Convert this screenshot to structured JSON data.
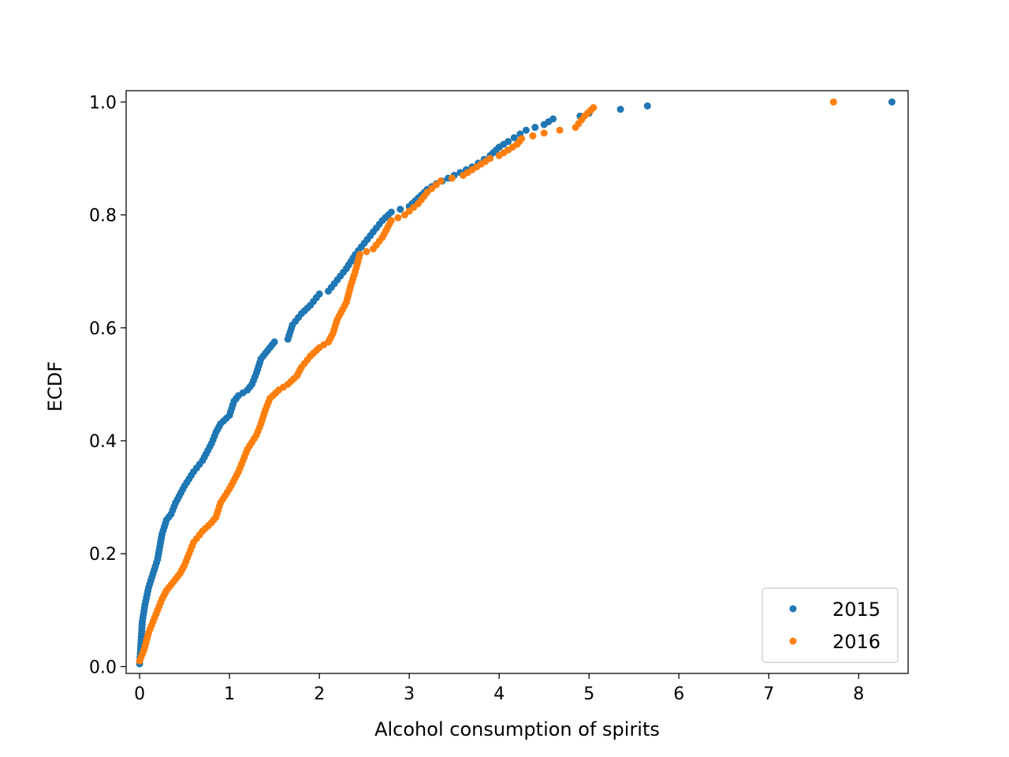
{
  "chart_data": {
    "type": "scatter",
    "title": "",
    "xlabel": "Alcohol consumption of spirits",
    "ylabel": "ECDF",
    "xlim": [
      -0.15,
      8.55
    ],
    "ylim": [
      -0.012,
      1.02
    ],
    "grid": false,
    "legend_placement": "bottom-right",
    "x_ticks": [
      0,
      1,
      2,
      3,
      4,
      5,
      6,
      7,
      8
    ],
    "x_tick_labels": [
      "0",
      "1",
      "2",
      "3",
      "4",
      "5",
      "6",
      "7",
      "8"
    ],
    "y_ticks": [
      0.0,
      0.2,
      0.4,
      0.6,
      0.8,
      1.0
    ],
    "y_tick_labels": [
      "0.0",
      "0.2",
      "0.4",
      "0.6",
      "0.8",
      "1.0"
    ],
    "series": [
      {
        "name": "2015",
        "color": "#1f77b4",
        "anchors": [
          [
            0.0,
            0.005
          ],
          [
            0.01,
            0.03
          ],
          [
            0.03,
            0.08
          ],
          [
            0.06,
            0.11
          ],
          [
            0.1,
            0.14
          ],
          [
            0.15,
            0.165
          ],
          [
            0.2,
            0.19
          ],
          [
            0.25,
            0.235
          ],
          [
            0.3,
            0.26
          ],
          [
            0.35,
            0.27
          ],
          [
            0.4,
            0.29
          ],
          [
            0.5,
            0.32
          ],
          [
            0.6,
            0.345
          ],
          [
            0.7,
            0.365
          ],
          [
            0.8,
            0.395
          ],
          [
            0.85,
            0.415
          ],
          [
            0.9,
            0.43
          ],
          [
            1.0,
            0.445
          ],
          [
            1.05,
            0.47
          ],
          [
            1.1,
            0.48
          ],
          [
            1.2,
            0.49
          ],
          [
            1.25,
            0.5
          ],
          [
            1.3,
            0.52
          ],
          [
            1.35,
            0.545
          ],
          [
            1.4,
            0.555
          ],
          [
            1.45,
            0.565
          ],
          [
            1.5,
            0.575
          ],
          [
            1.65,
            0.58
          ],
          [
            1.7,
            0.605
          ],
          [
            1.8,
            0.625
          ],
          [
            1.9,
            0.64
          ],
          [
            2.0,
            0.66
          ],
          [
            2.1,
            0.665
          ],
          [
            2.2,
            0.685
          ],
          [
            2.3,
            0.705
          ],
          [
            2.4,
            0.73
          ],
          [
            2.5,
            0.75
          ],
          [
            2.6,
            0.77
          ],
          [
            2.7,
            0.79
          ],
          [
            2.8,
            0.805
          ],
          [
            3.0,
            0.815
          ],
          [
            3.1,
            0.83
          ],
          [
            3.2,
            0.845
          ],
          [
            3.3,
            0.855
          ],
          [
            3.5,
            0.87
          ],
          [
            3.7,
            0.885
          ],
          [
            3.9,
            0.905
          ],
          [
            4.0,
            0.92
          ],
          [
            4.1,
            0.93
          ],
          [
            4.3,
            0.95
          ],
          [
            4.5,
            0.96
          ],
          [
            4.6,
            0.97
          ],
          [
            4.9,
            0.975
          ],
          [
            5.0,
            0.98
          ],
          [
            5.35,
            0.987
          ],
          [
            5.65,
            0.993
          ],
          [
            8.37,
            1.0
          ]
        ]
      },
      {
        "name": "2016",
        "color": "#ff7f0e",
        "anchors": [
          [
            0.0,
            0.01
          ],
          [
            0.05,
            0.03
          ],
          [
            0.1,
            0.06
          ],
          [
            0.15,
            0.08
          ],
          [
            0.2,
            0.1
          ],
          [
            0.25,
            0.12
          ],
          [
            0.3,
            0.135
          ],
          [
            0.35,
            0.145
          ],
          [
            0.4,
            0.155
          ],
          [
            0.45,
            0.165
          ],
          [
            0.5,
            0.18
          ],
          [
            0.55,
            0.2
          ],
          [
            0.6,
            0.22
          ],
          [
            0.7,
            0.24
          ],
          [
            0.8,
            0.255
          ],
          [
            0.85,
            0.265
          ],
          [
            0.9,
            0.29
          ],
          [
            1.0,
            0.315
          ],
          [
            1.1,
            0.345
          ],
          [
            1.15,
            0.365
          ],
          [
            1.2,
            0.385
          ],
          [
            1.3,
            0.41
          ],
          [
            1.35,
            0.43
          ],
          [
            1.4,
            0.455
          ],
          [
            1.45,
            0.475
          ],
          [
            1.55,
            0.49
          ],
          [
            1.65,
            0.5
          ],
          [
            1.75,
            0.515
          ],
          [
            1.8,
            0.53
          ],
          [
            1.9,
            0.55
          ],
          [
            2.0,
            0.565
          ],
          [
            2.1,
            0.575
          ],
          [
            2.15,
            0.59
          ],
          [
            2.2,
            0.615
          ],
          [
            2.3,
            0.645
          ],
          [
            2.35,
            0.675
          ],
          [
            2.4,
            0.7
          ],
          [
            2.45,
            0.73
          ],
          [
            2.6,
            0.74
          ],
          [
            2.7,
            0.76
          ],
          [
            2.8,
            0.79
          ],
          [
            2.95,
            0.8
          ],
          [
            3.1,
            0.82
          ],
          [
            3.2,
            0.84
          ],
          [
            3.35,
            0.86
          ],
          [
            3.6,
            0.87
          ],
          [
            3.7,
            0.88
          ],
          [
            3.8,
            0.89
          ],
          [
            3.9,
            0.9
          ],
          [
            4.0,
            0.905
          ],
          [
            4.1,
            0.915
          ],
          [
            4.2,
            0.925
          ],
          [
            4.25,
            0.935
          ],
          [
            4.5,
            0.945
          ],
          [
            4.85,
            0.955
          ],
          [
            4.95,
            0.975
          ],
          [
            5.05,
            0.99
          ],
          [
            7.72,
            1.0
          ]
        ]
      }
    ]
  }
}
